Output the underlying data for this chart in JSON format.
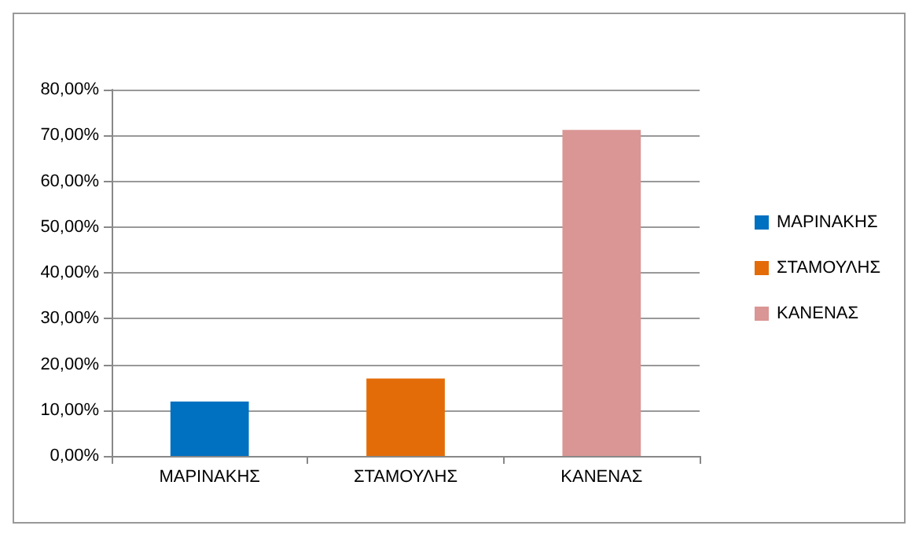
{
  "chart_data": {
    "type": "bar",
    "categories": [
      "ΜΑΡΙΝΑΚΗΣ",
      "ΣΤΑΜΟΥΛΗΣ",
      "ΚΑΝΕΝΑΣ"
    ],
    "series": [
      {
        "name": "ΜΑΡΙΝΑΚΗΣ",
        "color": "#0070c0",
        "values": [
          11.9,
          null,
          null
        ]
      },
      {
        "name": "ΣΤΑΜΟΥΛΗΣ",
        "color": "#e36c09",
        "values": [
          null,
          16.9,
          null
        ]
      },
      {
        "name": "ΚΑΝΕΝΑΣ",
        "color": "#d99694",
        "values": [
          null,
          null,
          71.2
        ]
      }
    ],
    "ylim": [
      0,
      80
    ],
    "yticks": [
      {
        "value": 0,
        "label": "0,00%"
      },
      {
        "value": 10,
        "label": "10,00%"
      },
      {
        "value": 20,
        "label": "20,00%"
      },
      {
        "value": 30,
        "label": "30,00%"
      },
      {
        "value": 40,
        "label": "40,00%"
      },
      {
        "value": 50,
        "label": "50,00%"
      },
      {
        "value": 60,
        "label": "60,00%"
      },
      {
        "value": 70,
        "label": "70,00%"
      },
      {
        "value": 80,
        "label": "80,00%"
      }
    ],
    "grid": "y",
    "legend": "right"
  }
}
